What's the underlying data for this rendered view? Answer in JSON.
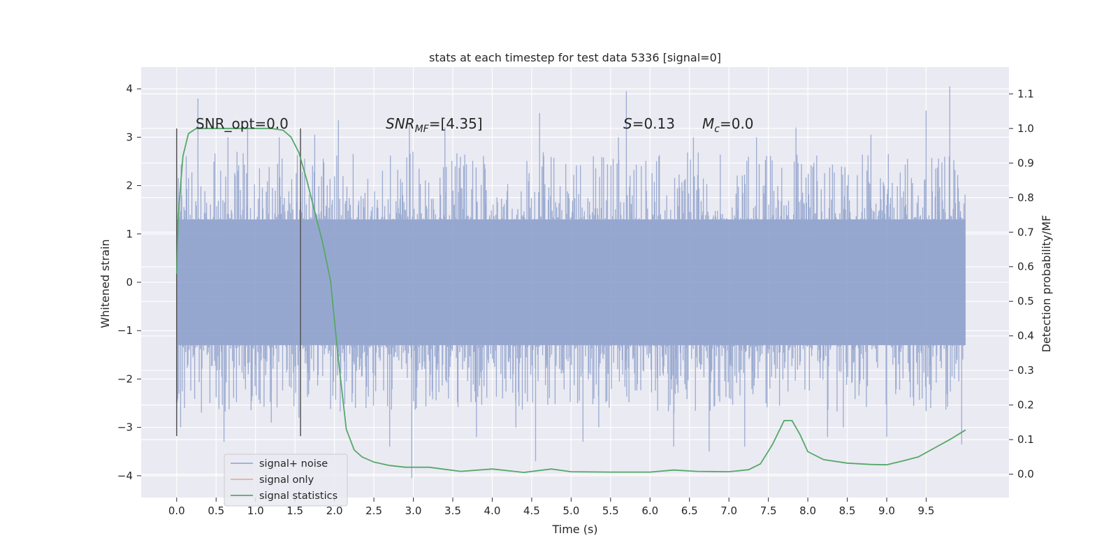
{
  "chart_data": {
    "type": "line",
    "title": "stats at each timestep for test data 5336 [signal=0]",
    "xlabel": "Time (s)",
    "ylabel": "Whitened strain",
    "y2label": "Detection probability/MF",
    "xlim": [
      -0.45,
      10.55
    ],
    "ylim": [
      -4.45,
      4.45
    ],
    "y2lim": [
      -0.0675,
      1.1775
    ],
    "xticks": [
      "0.0",
      "0.5",
      "1.0",
      "1.5",
      "2.0",
      "2.5",
      "3.0",
      "3.5",
      "4.0",
      "4.5",
      "5.0",
      "5.5",
      "6.0",
      "6.5",
      "7.0",
      "7.5",
      "8.0",
      "8.5",
      "9.0",
      "9.5"
    ],
    "xtick_values": [
      0.0,
      0.5,
      1.0,
      1.5,
      2.0,
      2.5,
      3.0,
      3.5,
      4.0,
      4.5,
      5.0,
      5.5,
      6.0,
      6.5,
      7.0,
      7.5,
      8.0,
      8.5,
      9.0,
      9.5
    ],
    "yticks": [
      "−4",
      "−3",
      "−2",
      "−1",
      "0",
      "1",
      "2",
      "3",
      "4"
    ],
    "ytick_values": [
      -4,
      -3,
      -2,
      -1,
      0,
      1,
      2,
      3,
      4
    ],
    "y2ticks": [
      "0.0",
      "0.1",
      "0.2",
      "0.3",
      "0.4",
      "0.5",
      "0.6",
      "0.7",
      "0.8",
      "0.9",
      "1.0",
      "1.1"
    ],
    "y2tick_values": [
      0.0,
      0.1,
      0.2,
      0.3,
      0.4,
      0.5,
      0.6,
      0.7,
      0.8,
      0.9,
      1.0,
      1.1
    ],
    "grid": true,
    "legend_position": "lower-left",
    "series": [
      {
        "name": "signal+ noise",
        "axis": "left",
        "color": "#8da0cb",
        "kind": "noise-band",
        "x_range": [
          0.0,
          10.0
        ],
        "core_amplitude": 1.3,
        "peaks": [
          {
            "x": 0.0,
            "y": 2.1
          },
          {
            "x": 0.05,
            "y": -3.0
          },
          {
            "x": 0.1,
            "y": -2.6
          },
          {
            "x": 0.27,
            "y": 3.8
          },
          {
            "x": 0.6,
            "y": -3.3
          },
          {
            "x": 0.65,
            "y": 3.0
          },
          {
            "x": 0.9,
            "y": 3.3
          },
          {
            "x": 1.2,
            "y": -2.9
          },
          {
            "x": 1.3,
            "y": 3.0
          },
          {
            "x": 1.55,
            "y": -2.8
          },
          {
            "x": 1.75,
            "y": 3.05
          },
          {
            "x": 2.05,
            "y": 3.35
          },
          {
            "x": 2.4,
            "y": -2.6
          },
          {
            "x": 2.7,
            "y": -3.4
          },
          {
            "x": 2.95,
            "y": 3.3
          },
          {
            "x": 2.98,
            "y": -4.05
          },
          {
            "x": 3.4,
            "y": 3.2
          },
          {
            "x": 3.8,
            "y": -3.2
          },
          {
            "x": 4.3,
            "y": -3.0
          },
          {
            "x": 4.55,
            "y": -3.7
          },
          {
            "x": 4.6,
            "y": 3.5
          },
          {
            "x": 5.15,
            "y": -3.3
          },
          {
            "x": 5.35,
            "y": -3.0
          },
          {
            "x": 5.6,
            "y": 3.0
          },
          {
            "x": 5.7,
            "y": 3.95
          },
          {
            "x": 6.3,
            "y": -3.4
          },
          {
            "x": 6.55,
            "y": 3.0
          },
          {
            "x": 6.75,
            "y": -3.5
          },
          {
            "x": 7.2,
            "y": -3.4
          },
          {
            "x": 7.35,
            "y": 3.0
          },
          {
            "x": 7.85,
            "y": 3.2
          },
          {
            "x": 8.25,
            "y": -3.2
          },
          {
            "x": 8.45,
            "y": -3.0
          },
          {
            "x": 8.8,
            "y": 3.05
          },
          {
            "x": 9.0,
            "y": -3.2
          },
          {
            "x": 9.5,
            "y": 3.55
          },
          {
            "x": 9.8,
            "y": 4.05
          },
          {
            "x": 9.95,
            "y": -3.35
          }
        ]
      },
      {
        "name": "signal only",
        "axis": "left",
        "color": "#e8a58c",
        "x": [],
        "y": []
      },
      {
        "name": "signal statistics",
        "axis": "right",
        "color": "#55a868",
        "x": [
          0.0,
          0.02,
          0.08,
          0.15,
          0.25,
          0.5,
          0.9,
          1.2,
          1.35,
          1.45,
          1.55,
          1.65,
          1.75,
          1.85,
          1.95,
          2.05,
          2.15,
          2.25,
          2.35,
          2.5,
          2.7,
          2.9,
          3.2,
          3.6,
          4.0,
          4.4,
          4.75,
          5.0,
          5.5,
          6.0,
          6.3,
          6.6,
          7.0,
          7.25,
          7.4,
          7.55,
          7.7,
          7.8,
          7.9,
          8.0,
          8.2,
          8.5,
          8.8,
          9.0,
          9.2,
          9.4,
          9.6,
          9.8,
          10.0
        ],
        "y": [
          0.58,
          0.75,
          0.92,
          0.985,
          1.0,
          1.0,
          1.0,
          1.0,
          0.995,
          0.975,
          0.93,
          0.85,
          0.76,
          0.67,
          0.56,
          0.33,
          0.13,
          0.07,
          0.05,
          0.035,
          0.025,
          0.02,
          0.02,
          0.008,
          0.015,
          0.005,
          0.015,
          0.007,
          0.006,
          0.006,
          0.012,
          0.008,
          0.007,
          0.013,
          0.03,
          0.085,
          0.155,
          0.155,
          0.115,
          0.065,
          0.042,
          0.032,
          0.028,
          0.027,
          0.038,
          0.05,
          0.075,
          0.1,
          0.128
        ]
      }
    ],
    "vlines": [
      0.0,
      1.57
    ],
    "annotations": {
      "snr_opt": "SNR_opt=0.0",
      "snr_mf_main": "SNR",
      "snr_mf_sub": "MF",
      "snr_mf_value": "=[4.35]",
      "s_symbol": "S",
      "s_value": "=0.13",
      "mc_symbol": "M",
      "mc_sub": "c",
      "mc_value": "=0.0"
    }
  }
}
